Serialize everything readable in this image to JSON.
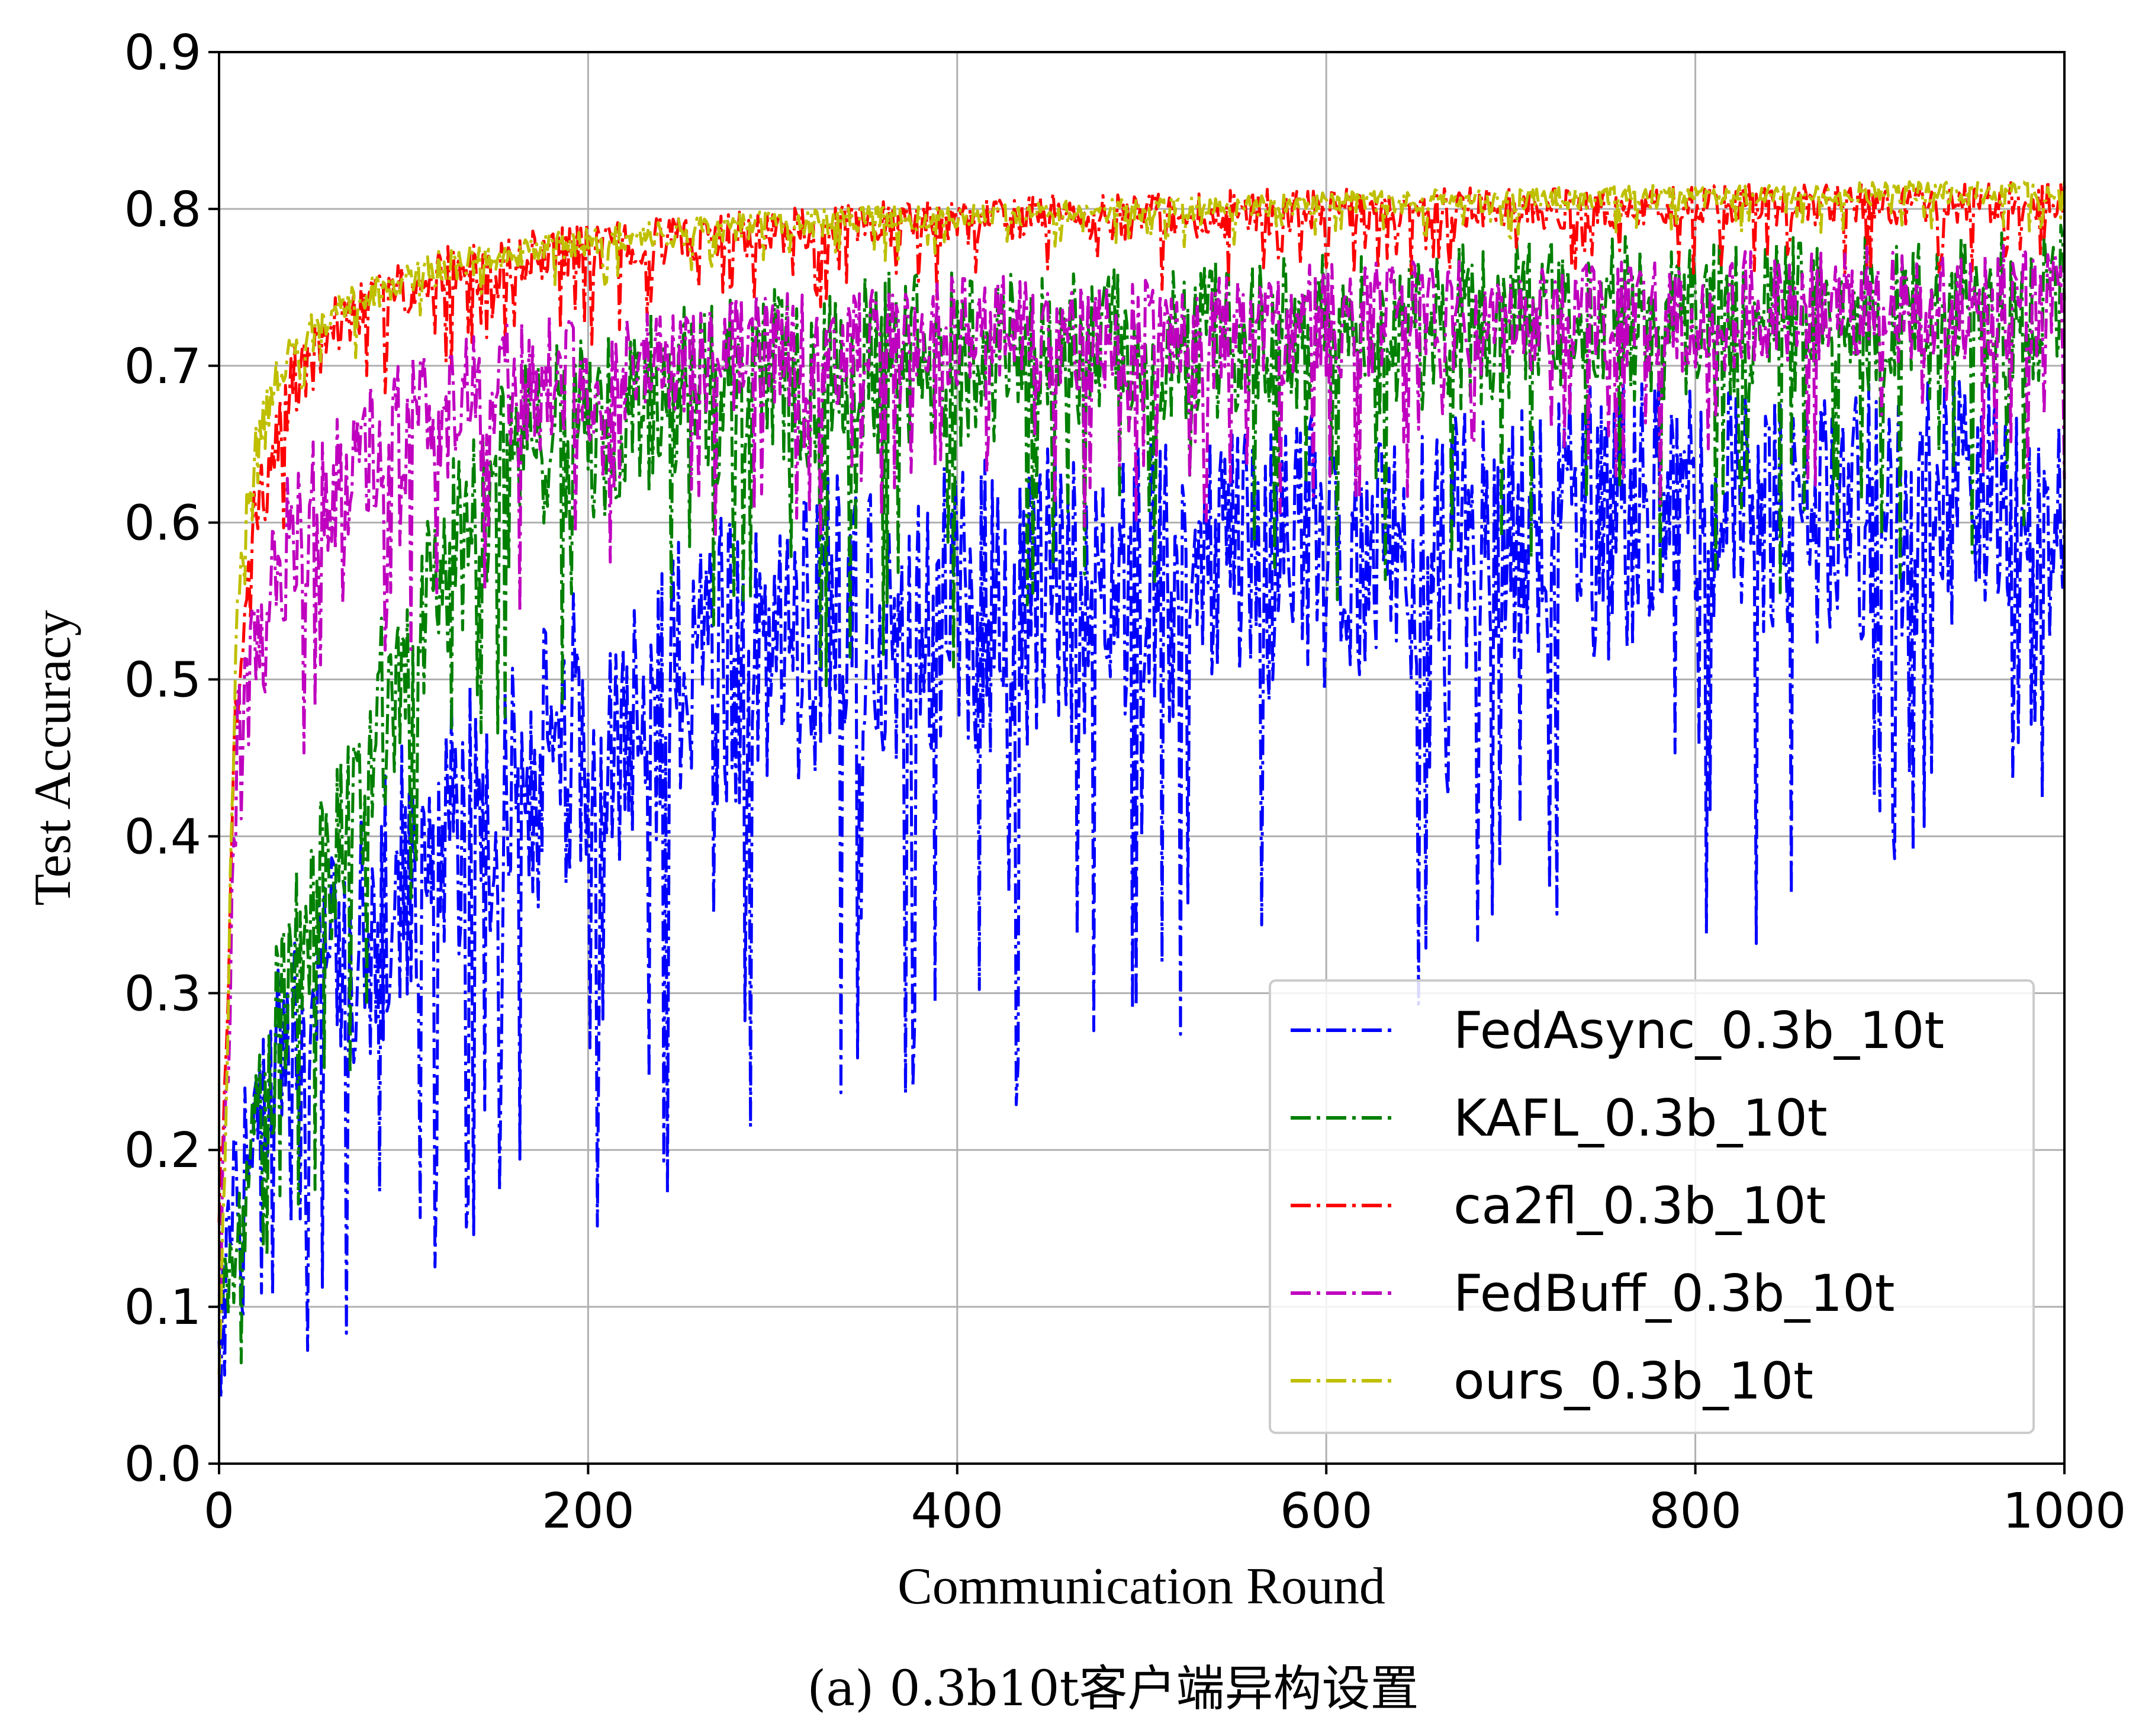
{
  "chart_data": {
    "type": "line",
    "xlabel": "Communication Round",
    "ylabel": "Test Accuracy",
    "caption": "(a) 0.3b10t客户端异构设置",
    "xlim": [
      0,
      1000
    ],
    "ylim": [
      0.0,
      0.9
    ],
    "xticks": [
      "0",
      "200",
      "400",
      "600",
      "800",
      "1000"
    ],
    "yticks": [
      "0.0",
      "0.1",
      "0.2",
      "0.3",
      "0.4",
      "0.5",
      "0.6",
      "0.7",
      "0.8",
      "0.9"
    ],
    "grid": true,
    "legend_position": "lower-right",
    "x": [
      0,
      10,
      20,
      30,
      40,
      60,
      80,
      100,
      125,
      150,
      175,
      200,
      250,
      300,
      350,
      400,
      450,
      500,
      550,
      600,
      650,
      700,
      750,
      800,
      850,
      900,
      950,
      1000
    ],
    "series": [
      {
        "name": "FedAsync_0.3b_10t",
        "color": "#0000ff",
        "values": [
          0.08,
          0.2,
          0.22,
          0.25,
          0.27,
          0.31,
          0.34,
          0.37,
          0.4,
          0.43,
          0.45,
          0.47,
          0.5,
          0.52,
          0.54,
          0.55,
          0.55,
          0.56,
          0.57,
          0.58,
          0.59,
          0.6,
          0.6,
          0.61,
          0.6,
          0.61,
          0.61,
          0.6
        ],
        "spread": [
          0.02,
          0.07,
          0.08,
          0.09,
          0.09,
          0.1,
          0.11,
          0.12,
          0.12,
          0.12,
          0.13,
          0.13,
          0.13,
          0.13,
          0.13,
          0.13,
          0.13,
          0.12,
          0.12,
          0.12,
          0.12,
          0.12,
          0.12,
          0.11,
          0.11,
          0.11,
          0.11,
          0.1
        ]
      },
      {
        "name": "KAFL_0.3b_10t",
        "color": "#008000",
        "values": [
          0.1,
          0.15,
          0.2,
          0.27,
          0.33,
          0.38,
          0.45,
          0.52,
          0.58,
          0.62,
          0.65,
          0.66,
          0.68,
          0.69,
          0.7,
          0.7,
          0.71,
          0.71,
          0.72,
          0.72,
          0.72,
          0.73,
          0.73,
          0.73,
          0.73,
          0.73,
          0.73,
          0.74
        ],
        "spread": [
          0.02,
          0.06,
          0.07,
          0.08,
          0.08,
          0.08,
          0.09,
          0.09,
          0.09,
          0.09,
          0.08,
          0.08,
          0.08,
          0.08,
          0.08,
          0.08,
          0.07,
          0.07,
          0.07,
          0.07,
          0.07,
          0.07,
          0.07,
          0.07,
          0.07,
          0.07,
          0.07,
          0.07
        ]
      },
      {
        "name": "ca2fl_0.3b_10t",
        "color": "#ff0000",
        "values": [
          0.15,
          0.5,
          0.6,
          0.65,
          0.69,
          0.72,
          0.74,
          0.75,
          0.76,
          0.76,
          0.77,
          0.775,
          0.78,
          0.785,
          0.79,
          0.79,
          0.795,
          0.795,
          0.797,
          0.8,
          0.8,
          0.8,
          0.8,
          0.802,
          0.803,
          0.803,
          0.804,
          0.805
        ],
        "spread": [
          0.03,
          0.05,
          0.04,
          0.03,
          0.03,
          0.03,
          0.025,
          0.025,
          0.025,
          0.025,
          0.025,
          0.025,
          0.02,
          0.02,
          0.02,
          0.02,
          0.02,
          0.02,
          0.02,
          0.018,
          0.018,
          0.018,
          0.018,
          0.018,
          0.018,
          0.018,
          0.018,
          0.018
        ]
      },
      {
        "name": "FedBuff_0.3b_10t",
        "color": "#bf00bf",
        "values": [
          0.1,
          0.45,
          0.52,
          0.56,
          0.59,
          0.62,
          0.64,
          0.66,
          0.67,
          0.68,
          0.69,
          0.69,
          0.7,
          0.71,
          0.71,
          0.72,
          0.72,
          0.72,
          0.72,
          0.73,
          0.73,
          0.73,
          0.73,
          0.73,
          0.74,
          0.74,
          0.74,
          0.74
        ],
        "spread": [
          0.03,
          0.08,
          0.07,
          0.07,
          0.06,
          0.06,
          0.06,
          0.06,
          0.06,
          0.06,
          0.06,
          0.05,
          0.05,
          0.05,
          0.05,
          0.05,
          0.05,
          0.05,
          0.05,
          0.05,
          0.05,
          0.05,
          0.05,
          0.05,
          0.05,
          0.05,
          0.05,
          0.05
        ]
      },
      {
        "name": "ours_0.3b_10t",
        "color": "#bfbf00",
        "values": [
          0.05,
          0.55,
          0.64,
          0.69,
          0.71,
          0.73,
          0.745,
          0.755,
          0.765,
          0.77,
          0.775,
          0.78,
          0.785,
          0.79,
          0.793,
          0.795,
          0.797,
          0.8,
          0.801,
          0.803,
          0.805,
          0.806,
          0.807,
          0.808,
          0.809,
          0.81,
          0.81,
          0.81
        ],
        "spread": [
          0.02,
          0.04,
          0.03,
          0.02,
          0.02,
          0.015,
          0.015,
          0.015,
          0.015,
          0.012,
          0.012,
          0.012,
          0.012,
          0.012,
          0.012,
          0.01,
          0.01,
          0.01,
          0.01,
          0.01,
          0.01,
          0.01,
          0.01,
          0.01,
          0.01,
          0.01,
          0.01,
          0.01
        ]
      }
    ]
  }
}
